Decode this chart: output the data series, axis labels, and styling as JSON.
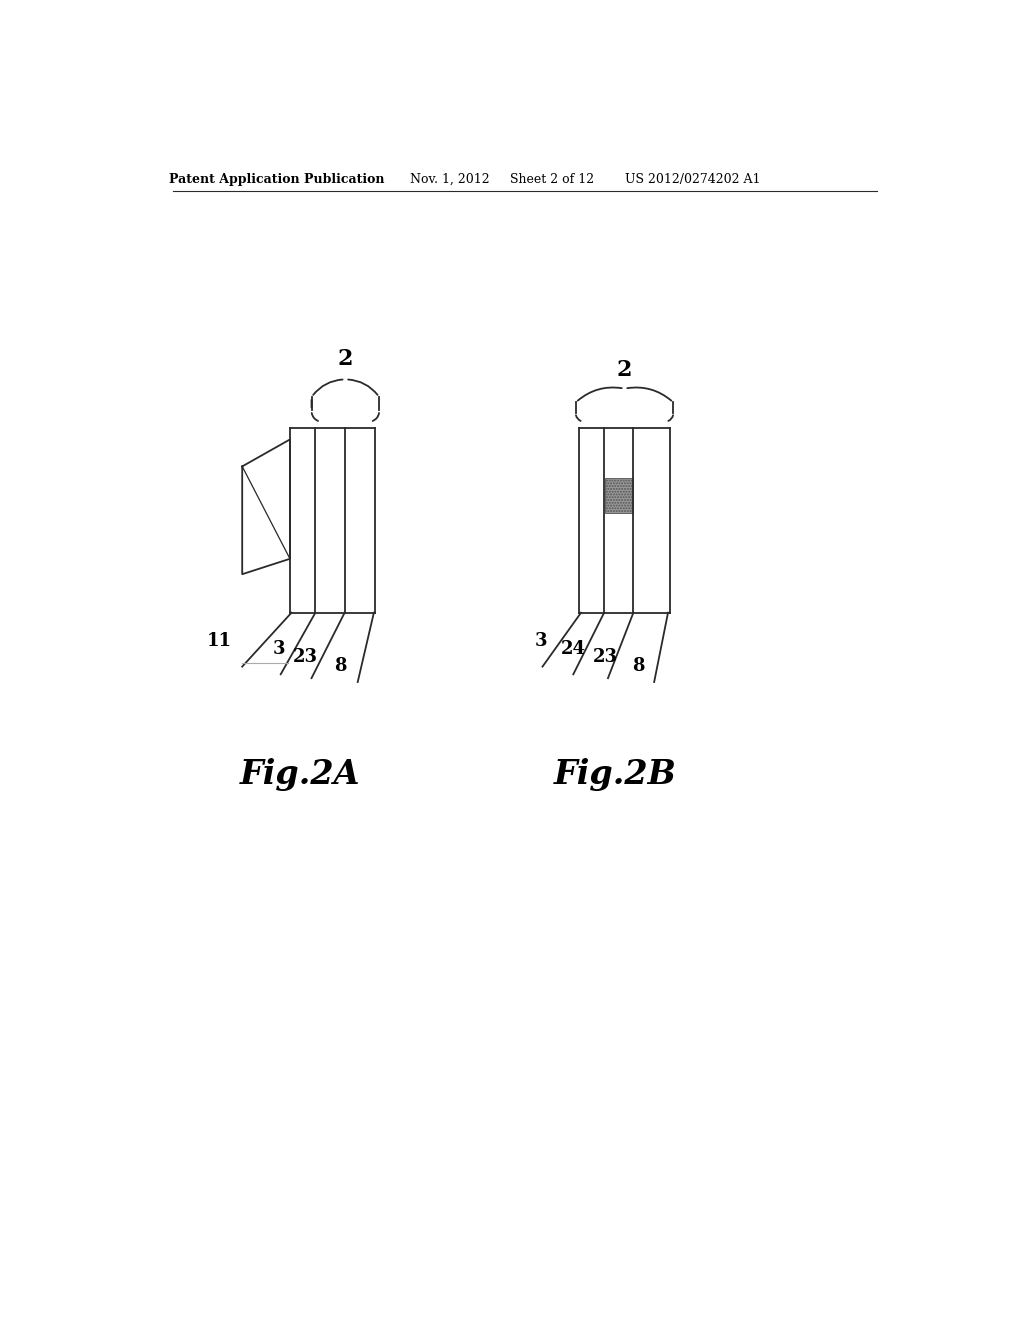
{
  "bg_color": "#ffffff",
  "header_text": "Patent Application Publication",
  "header_date": "Nov. 1, 2012",
  "header_sheet": "Sheet 2 of 12",
  "header_patent": "US 2012/0274202 A1",
  "fig2a_label": "Fig.2A",
  "fig2b_label": "Fig.2B",
  "line_color": "#2a2a2a",
  "hatch_color": "#777777"
}
